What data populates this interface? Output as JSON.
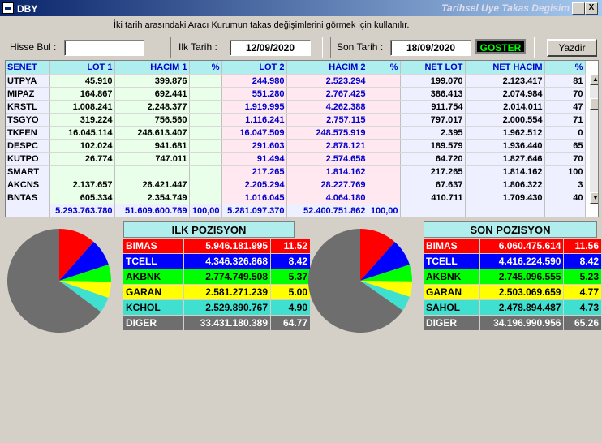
{
  "window": {
    "title": "DBY",
    "caption": "Tarihsel Uye Takas Degisim",
    "btn_min": "_",
    "btn_close": "X"
  },
  "hint": "İki tarih arasındaki  Aracı Kurumun takas değişimlerini görmek için kullanılır.",
  "filters": {
    "hisse_label": "Hisse Bul :",
    "hisse_value": "",
    "ilk_label": "Ilk Tarih :",
    "ilk_value": "12/09/2020",
    "son_label": "Son Tarih :",
    "son_value": "18/09/2020",
    "goster": "GOSTER",
    "yazdir": "Yazdir"
  },
  "table": {
    "columns": [
      "SENET",
      "LOT 1",
      "HACIM 1",
      "%",
      "LOT 2",
      "HACIM 2",
      "%",
      "NET LOT",
      "NET HACIM",
      "%"
    ],
    "rows": [
      [
        "UTPYA",
        "45.910",
        "399.876",
        "",
        "244.980",
        "2.523.294",
        "",
        "199.070",
        "2.123.417",
        "81"
      ],
      [
        "MIPAZ",
        "164.867",
        "692.441",
        "",
        "551.280",
        "2.767.425",
        "",
        "386.413",
        "2.074.984",
        "70"
      ],
      [
        "KRSTL",
        "1.008.241",
        "2.248.377",
        "",
        "1.919.995",
        "4.262.388",
        "",
        "911.754",
        "2.014.011",
        "47"
      ],
      [
        "TSGYO",
        "319.224",
        "756.560",
        "",
        "1.116.241",
        "2.757.115",
        "",
        "797.017",
        "2.000.554",
        "71"
      ],
      [
        "TKFEN",
        "16.045.114",
        "246.613.407",
        "",
        "16.047.509",
        "248.575.919",
        "",
        "2.395",
        "1.962.512",
        "0"
      ],
      [
        "DESPC",
        "102.024",
        "941.681",
        "",
        "291.603",
        "2.878.121",
        "",
        "189.579",
        "1.936.440",
        "65"
      ],
      [
        "KUTPO",
        "26.774",
        "747.011",
        "",
        "91.494",
        "2.574.658",
        "",
        "64.720",
        "1.827.646",
        "70"
      ],
      [
        "SMART",
        "",
        "",
        "",
        "217.265",
        "1.814.162",
        "",
        "217.265",
        "1.814.162",
        "100"
      ],
      [
        "AKCNS",
        "2.137.657",
        "26.421.447",
        "",
        "2.205.294",
        "28.227.769",
        "",
        "67.637",
        "1.806.322",
        "3"
      ],
      [
        "BNTAS",
        "605.334",
        "2.354.749",
        "",
        "1.016.045",
        "4.064.180",
        "",
        "410.711",
        "1.709.430",
        "40"
      ]
    ],
    "totals": [
      "",
      "5.293.763.780",
      "51.609.600.769",
      "100,00",
      "5.281.097.370",
      "52.400.751.862",
      "100,00",
      "",
      "",
      ""
    ]
  },
  "ilk_pozisyon": {
    "title": "ILK POZISYON",
    "rows": [
      {
        "name": "BIMAS",
        "value": "5.946.181.995",
        "pct": "11.52",
        "bg": "#ff0000",
        "fg": "#ffffff"
      },
      {
        "name": "TCELL",
        "value": "4.346.326.868",
        "pct": "8.42",
        "bg": "#0000ff",
        "fg": "#ffffff"
      },
      {
        "name": "AKBNK",
        "value": "2.774.749.508",
        "pct": "5.37",
        "bg": "#00ff00",
        "fg": "#000000"
      },
      {
        "name": "GARAN",
        "value": "2.581.271.239",
        "pct": "5.00",
        "bg": "#ffff00",
        "fg": "#000000"
      },
      {
        "name": "KCHOL",
        "value": "2.529.890.767",
        "pct": "4.90",
        "bg": "#40e0d0",
        "fg": "#000000"
      },
      {
        "name": "DIGER",
        "value": "33.431.180.389",
        "pct": "64.77",
        "bg": "#6e6e6e",
        "fg": "#ffffff"
      }
    ]
  },
  "son_pozisyon": {
    "title": "SON POZISYON",
    "rows": [
      {
        "name": "BIMAS",
        "value": "6.060.475.614",
        "pct": "11.56",
        "bg": "#ff0000",
        "fg": "#ffffff"
      },
      {
        "name": "TCELL",
        "value": "4.416.224.590",
        "pct": "8.42",
        "bg": "#0000ff",
        "fg": "#ffffff"
      },
      {
        "name": "AKBNK",
        "value": "2.745.096.555",
        "pct": "5.23",
        "bg": "#00ff00",
        "fg": "#000000"
      },
      {
        "name": "GARAN",
        "value": "2.503.069.659",
        "pct": "4.77",
        "bg": "#ffff00",
        "fg": "#000000"
      },
      {
        "name": "SAHOL",
        "value": "2.478.894.487",
        "pct": "4.73",
        "bg": "#40e0d0",
        "fg": "#000000"
      },
      {
        "name": "DIGER",
        "value": "34.196.990.956",
        "pct": "65.26",
        "bg": "#6e6e6e",
        "fg": "#ffffff"
      }
    ]
  },
  "colors": {
    "pie_slices": [
      "#ff0000",
      "#0000ff",
      "#00ff00",
      "#ffff00",
      "#40e0d0",
      "#6e6e6e"
    ]
  }
}
